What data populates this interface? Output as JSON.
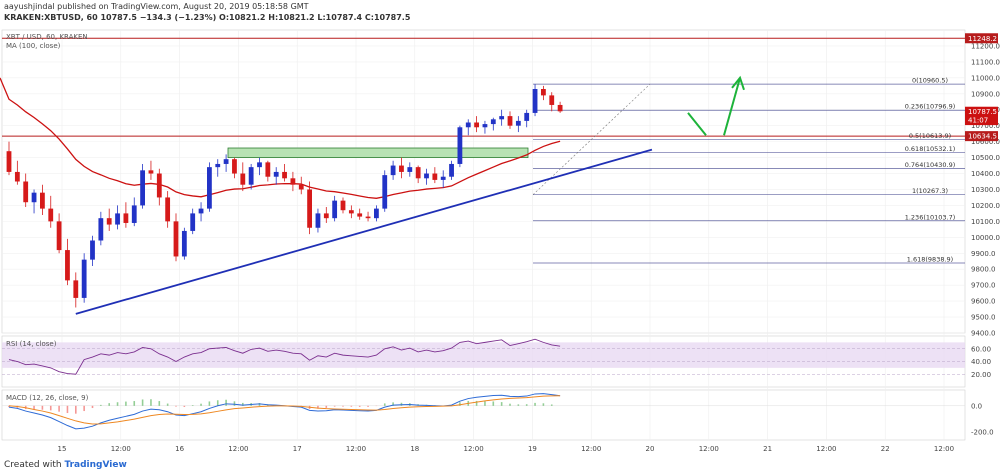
{
  "header": {
    "publisher_line": "aayushjindal published on TradingView.com, August 20, 2019 05:18:58 GMT",
    "ticker_line": "KRAKEN:XBTUSD, 60  10787.5  −134.3 (−1.23%)  O:10821.2  H:10821.2  L:10787.4  C:10787.5"
  },
  "footer": {
    "created_with": "Created with",
    "brand": "TradingView"
  },
  "colors": {
    "up": "#2233c6",
    "down": "#d61a1a",
    "ma": "#cc1111",
    "trend": "#1f2fb5",
    "hline": "#b71c1c",
    "fib": "#2b2f80",
    "zone_fill": "#b8e3b4",
    "zone_stroke": "#2e7d32",
    "arrow": "#1db33a",
    "rsi": "#7b2f8f",
    "rsi_band": "#e8d9f2",
    "macd": "#2e6bd6",
    "signal": "#ee8822"
  },
  "chart_data": [
    {
      "type": "candlestick",
      "title": "XBT / USD, 60, KRAKEN",
      "indicator_label": "MA (100, close)",
      "x_labels": [
        "15",
        "12:00",
        "16",
        "12:00",
        "17",
        "12:00",
        "18",
        "12:00",
        "19",
        "12:00",
        "20",
        "12:00",
        "21",
        "12:00",
        "22",
        "12:00"
      ],
      "ylim": [
        9400,
        11300
      ],
      "y_ticks": [
        9400,
        9500,
        9600,
        9700,
        9800,
        9900,
        10000,
        10100,
        10200,
        10300,
        10400,
        10500,
        10600,
        10700,
        10800,
        10900,
        11000,
        11100,
        11200
      ],
      "candles": [
        {
          "t": 0,
          "o": 10540,
          "h": 10600,
          "l": 10390,
          "c": 10410
        },
        {
          "t": 1,
          "o": 10410,
          "h": 10480,
          "l": 10330,
          "c": 10350
        },
        {
          "t": 2,
          "o": 10350,
          "h": 10400,
          "l": 10190,
          "c": 10220
        },
        {
          "t": 3,
          "o": 10220,
          "h": 10300,
          "l": 10150,
          "c": 10280
        },
        {
          "t": 4,
          "o": 10280,
          "h": 10330,
          "l": 10140,
          "c": 10180
        },
        {
          "t": 5,
          "o": 10180,
          "h": 10260,
          "l": 10060,
          "c": 10100
        },
        {
          "t": 6,
          "o": 10100,
          "h": 10150,
          "l": 9900,
          "c": 9920
        },
        {
          "t": 7,
          "o": 9920,
          "h": 9990,
          "l": 9700,
          "c": 9730
        },
        {
          "t": 8,
          "o": 9730,
          "h": 9780,
          "l": 9560,
          "c": 9620
        },
        {
          "t": 9,
          "o": 9620,
          "h": 9900,
          "l": 9590,
          "c": 9860
        },
        {
          "t": 10,
          "o": 9860,
          "h": 10010,
          "l": 9820,
          "c": 9980
        },
        {
          "t": 11,
          "o": 9980,
          "h": 10160,
          "l": 9950,
          "c": 10120
        },
        {
          "t": 12,
          "o": 10120,
          "h": 10180,
          "l": 10040,
          "c": 10080
        },
        {
          "t": 13,
          "o": 10080,
          "h": 10200,
          "l": 10050,
          "c": 10150
        },
        {
          "t": 14,
          "o": 10150,
          "h": 10220,
          "l": 10060,
          "c": 10090
        },
        {
          "t": 15,
          "o": 10090,
          "h": 10250,
          "l": 10070,
          "c": 10200
        },
        {
          "t": 16,
          "o": 10200,
          "h": 10460,
          "l": 10180,
          "c": 10420
        },
        {
          "t": 17,
          "o": 10420,
          "h": 10480,
          "l": 10360,
          "c": 10400
        },
        {
          "t": 18,
          "o": 10400,
          "h": 10430,
          "l": 10200,
          "c": 10250
        },
        {
          "t": 19,
          "o": 10250,
          "h": 10290,
          "l": 10060,
          "c": 10100
        },
        {
          "t": 20,
          "o": 10100,
          "h": 10150,
          "l": 9850,
          "c": 9880
        },
        {
          "t": 21,
          "o": 9880,
          "h": 10060,
          "l": 9860,
          "c": 10040
        },
        {
          "t": 22,
          "o": 10040,
          "h": 10180,
          "l": 10020,
          "c": 10150
        },
        {
          "t": 23,
          "o": 10150,
          "h": 10220,
          "l": 10100,
          "c": 10180
        },
        {
          "t": 24,
          "o": 10180,
          "h": 10470,
          "l": 10160,
          "c": 10440
        },
        {
          "t": 25,
          "o": 10440,
          "h": 10490,
          "l": 10380,
          "c": 10460
        },
        {
          "t": 26,
          "o": 10460,
          "h": 10520,
          "l": 10410,
          "c": 10490
        },
        {
          "t": 27,
          "o": 10490,
          "h": 10500,
          "l": 10370,
          "c": 10400
        },
        {
          "t": 28,
          "o": 10400,
          "h": 10470,
          "l": 10290,
          "c": 10330
        },
        {
          "t": 29,
          "o": 10330,
          "h": 10460,
          "l": 10300,
          "c": 10440
        },
        {
          "t": 30,
          "o": 10440,
          "h": 10500,
          "l": 10390,
          "c": 10470
        },
        {
          "t": 31,
          "o": 10470,
          "h": 10480,
          "l": 10350,
          "c": 10380
        },
        {
          "t": 32,
          "o": 10380,
          "h": 10440,
          "l": 10330,
          "c": 10410
        },
        {
          "t": 33,
          "o": 10410,
          "h": 10460,
          "l": 10350,
          "c": 10370
        },
        {
          "t": 34,
          "o": 10370,
          "h": 10410,
          "l": 10290,
          "c": 10330
        },
        {
          "t": 35,
          "o": 10330,
          "h": 10380,
          "l": 10270,
          "c": 10300
        },
        {
          "t": 36,
          "o": 10300,
          "h": 10350,
          "l": 10020,
          "c": 10060
        },
        {
          "t": 37,
          "o": 10060,
          "h": 10180,
          "l": 10030,
          "c": 10150
        },
        {
          "t": 38,
          "o": 10150,
          "h": 10190,
          "l": 10090,
          "c": 10120
        },
        {
          "t": 39,
          "o": 10120,
          "h": 10260,
          "l": 10100,
          "c": 10230
        },
        {
          "t": 40,
          "o": 10230,
          "h": 10250,
          "l": 10150,
          "c": 10170
        },
        {
          "t": 41,
          "o": 10170,
          "h": 10200,
          "l": 10120,
          "c": 10150
        },
        {
          "t": 42,
          "o": 10150,
          "h": 10180,
          "l": 10110,
          "c": 10130
        },
        {
          "t": 43,
          "o": 10130,
          "h": 10160,
          "l": 10100,
          "c": 10120
        },
        {
          "t": 44,
          "o": 10120,
          "h": 10200,
          "l": 10100,
          "c": 10180
        },
        {
          "t": 45,
          "o": 10180,
          "h": 10420,
          "l": 10160,
          "c": 10390
        },
        {
          "t": 46,
          "o": 10390,
          "h": 10480,
          "l": 10360,
          "c": 10450
        },
        {
          "t": 47,
          "o": 10450,
          "h": 10500,
          "l": 10370,
          "c": 10410
        },
        {
          "t": 48,
          "o": 10410,
          "h": 10470,
          "l": 10380,
          "c": 10440
        },
        {
          "t": 49,
          "o": 10440,
          "h": 10450,
          "l": 10340,
          "c": 10370
        },
        {
          "t": 50,
          "o": 10370,
          "h": 10430,
          "l": 10330,
          "c": 10400
        },
        {
          "t": 51,
          "o": 10400,
          "h": 10440,
          "l": 10340,
          "c": 10360
        },
        {
          "t": 52,
          "o": 10360,
          "h": 10420,
          "l": 10310,
          "c": 10380
        },
        {
          "t": 53,
          "o": 10380,
          "h": 10480,
          "l": 10360,
          "c": 10460
        },
        {
          "t": 54,
          "o": 10460,
          "h": 10700,
          "l": 10440,
          "c": 10690
        },
        {
          "t": 55,
          "o": 10690,
          "h": 10740,
          "l": 10640,
          "c": 10720
        },
        {
          "t": 56,
          "o": 10720,
          "h": 10760,
          "l": 10660,
          "c": 10690
        },
        {
          "t": 57,
          "o": 10690,
          "h": 10730,
          "l": 10650,
          "c": 10710
        },
        {
          "t": 58,
          "o": 10710,
          "h": 10750,
          "l": 10670,
          "c": 10740
        },
        {
          "t": 59,
          "o": 10740,
          "h": 10800,
          "l": 10700,
          "c": 10760
        },
        {
          "t": 60,
          "o": 10760,
          "h": 10790,
          "l": 10680,
          "c": 10700
        },
        {
          "t": 61,
          "o": 10700,
          "h": 10760,
          "l": 10660,
          "c": 10730
        },
        {
          "t": 62,
          "o": 10730,
          "h": 10800,
          "l": 10690,
          "c": 10780
        },
        {
          "t": 63,
          "o": 10780,
          "h": 10960,
          "l": 10760,
          "c": 10930
        },
        {
          "t": 64,
          "o": 10930,
          "h": 10950,
          "l": 10860,
          "c": 10890
        },
        {
          "t": 65,
          "o": 10890,
          "h": 10910,
          "l": 10790,
          "c": 10830
        },
        {
          "t": 66,
          "o": 10830,
          "h": 10850,
          "l": 10780,
          "c": 10790
        }
      ],
      "price_tags": [
        {
          "label": "11248.2",
          "value": 11248.2,
          "color": "#b71c1c"
        },
        {
          "label": "10787.5",
          "value": 10787.5,
          "color": "#cc1111"
        },
        {
          "label": "41:07",
          "value": 10735,
          "color": "#cc1111"
        },
        {
          "label": "10634.5",
          "value": 10634.5,
          "color": "#b71c1c"
        }
      ],
      "horizontal_lines": [
        11248.2,
        10634.5
      ],
      "fib_levels": [
        {
          "label": "0(10960.5)",
          "value": 10960.5
        },
        {
          "label": "0.236(10796.9)",
          "value": 10796.9
        },
        {
          "label": "0.5(10613.9)",
          "value": 10613.9
        },
        {
          "label": "0.618(10532.1)",
          "value": 10532.1
        },
        {
          "label": "0.764(10430.9)",
          "value": 10430.9
        },
        {
          "label": "1(10267.3)",
          "value": 10267.3
        },
        {
          "label": "1.236(10103.7)",
          "value": 10103.7
        },
        {
          "label": "1.618(9838.9)",
          "value": 9838.9
        }
      ],
      "resistance_zone": [
        10500,
        10560
      ],
      "trendline": {
        "from": {
          "t": 8,
          "price": 9520
        },
        "to": {
          "t": 77,
          "price": 10550
        }
      },
      "forecast_arrows": [
        {
          "from": 10780,
          "to": 10640
        },
        {
          "from": 10640,
          "to": 11000
        }
      ]
    },
    {
      "type": "line",
      "title": "RSI (14, close)",
      "ylim": [
        0,
        80
      ],
      "y_ticks": [
        20,
        40,
        60
      ],
      "band": [
        30,
        70
      ],
      "values": [
        43,
        40,
        35,
        36,
        33,
        30,
        24,
        21,
        20,
        43,
        47,
        52,
        50,
        54,
        52,
        55,
        62,
        60,
        52,
        47,
        40,
        47,
        52,
        54,
        60,
        61,
        62,
        57,
        53,
        59,
        61,
        56,
        58,
        56,
        53,
        52,
        42,
        49,
        47,
        53,
        50,
        49,
        48,
        47,
        50,
        60,
        63,
        58,
        61,
        55,
        58,
        55,
        57,
        61,
        70,
        72,
        68,
        70,
        72,
        74,
        65,
        68,
        71,
        75,
        70,
        66,
        64
      ]
    },
    {
      "type": "line",
      "title": "MACD (12, 26, close, 9)",
      "ylim": [
        -260,
        120
      ],
      "y_ticks": [
        0,
        -200
      ],
      "macd": [
        -10,
        -20,
        -40,
        -55,
        -70,
        -90,
        -120,
        -150,
        -175,
        -170,
        -155,
        -130,
        -110,
        -95,
        -80,
        -65,
        -40,
        -25,
        -30,
        -45,
        -70,
        -75,
        -60,
        -45,
        -20,
        0,
        15,
        12,
        5,
        10,
        15,
        8,
        5,
        0,
        -5,
        -10,
        -35,
        -40,
        -38,
        -30,
        -32,
        -35,
        -38,
        -40,
        -35,
        -10,
        5,
        8,
        10,
        5,
        3,
        0,
        -2,
        5,
        35,
        55,
        65,
        72,
        78,
        80,
        72,
        70,
        74,
        90,
        92,
        85,
        76
      ],
      "signal": [
        0,
        -5,
        -15,
        -28,
        -40,
        -55,
        -75,
        -95,
        -115,
        -130,
        -138,
        -137,
        -130,
        -122,
        -112,
        -101,
        -88,
        -75,
        -66,
        -62,
        -64,
        -66,
        -65,
        -61,
        -53,
        -42,
        -31,
        -22,
        -17,
        -11,
        -6,
        -3,
        -1,
        -1,
        -2,
        -4,
        -11,
        -18,
        -22,
        -24,
        -26,
        -28,
        -30,
        -32,
        -33,
        -28,
        -21,
        -15,
        -10,
        -7,
        -5,
        -4,
        -3,
        -1,
        8,
        18,
        28,
        37,
        45,
        52,
        56,
        59,
        62,
        68,
        73,
        75,
        76
      ]
    }
  ]
}
